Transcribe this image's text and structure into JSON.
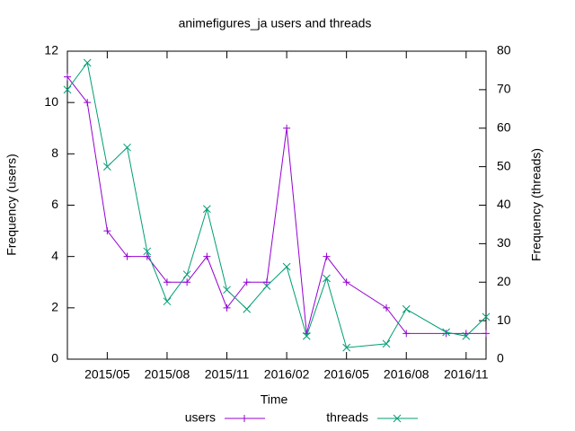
{
  "chart_data": {
    "type": "line",
    "title": "animefigures_ja users and threads",
    "x_label": "Time",
    "y_label": "Frequency (users)",
    "y2_label": "Frequency (threads)",
    "x": [
      "2015/03",
      "2015/04",
      "2015/05",
      "2015/06",
      "2015/07",
      "2015/08",
      "2015/09",
      "2015/10",
      "2015/11",
      "2015/12",
      "2016/01",
      "2016/02",
      "2016/03",
      "2016/04",
      "2016/05",
      "2016/07",
      "2016/08",
      "2016/10",
      "2016/11",
      "2016/12"
    ],
    "xlim": [
      "2015/03",
      "2016/12"
    ],
    "xticks": [
      "2015/05",
      "2015/08",
      "2015/11",
      "2016/02",
      "2016/05",
      "2016/08",
      "2016/11"
    ],
    "ylim": [
      0,
      12
    ],
    "yticks": [
      0,
      2,
      4,
      6,
      8,
      10,
      12
    ],
    "y2lim": [
      0,
      80
    ],
    "y2ticks": [
      0,
      10,
      20,
      30,
      40,
      50,
      60,
      70,
      80
    ],
    "series": [
      {
        "name": "users",
        "color": "#9400d3",
        "marker": "plus",
        "values": [
          11,
          10,
          5,
          4,
          4,
          3,
          3,
          4,
          2,
          3,
          3,
          9,
          1,
          4,
          3,
          2,
          1,
          1,
          1,
          1
        ]
      },
      {
        "name": "threads",
        "color": "#009e73",
        "marker": "cross",
        "axis": "y2",
        "values": [
          70,
          77,
          50,
          55,
          28,
          15,
          22,
          39,
          18,
          13,
          19,
          24,
          6,
          21,
          3,
          4,
          13,
          7,
          6,
          11
        ]
      }
    ]
  }
}
